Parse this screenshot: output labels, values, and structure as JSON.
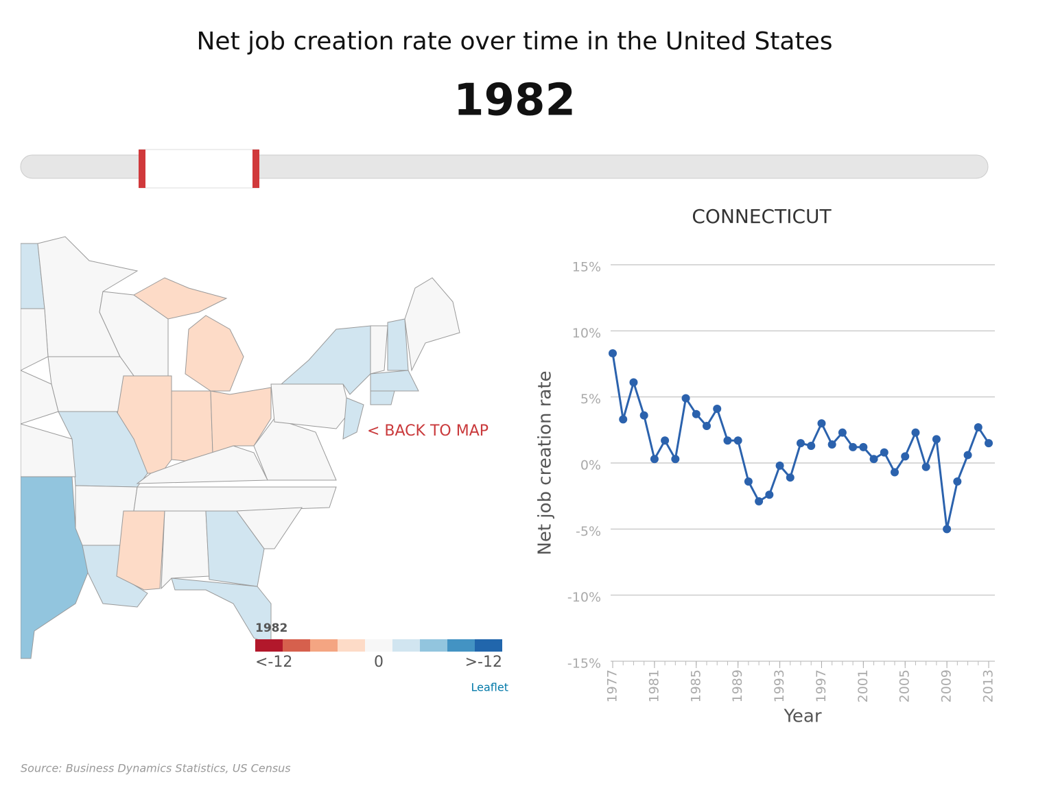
{
  "title": "Net job creation rate over time in the United States",
  "year": "1982",
  "back_link": "< BACK TO MAP",
  "map_legend": {
    "title": "1982",
    "colors": [
      "#b2182b",
      "#d6604d",
      "#f4a582",
      "#fddbc7",
      "#f7f7f7",
      "#d1e5f0",
      "#92c5de",
      "#4393c3",
      "#2166ac"
    ],
    "labels": [
      "<-12",
      "0",
      ">-12"
    ]
  },
  "attribution": "Leaflet",
  "source": "Source: Business Dynamics Statistics, US Census",
  "chart_data": {
    "type": "line",
    "title": "CONNECTICUT",
    "x_label": "Year",
    "y_label": "Net job creation rate",
    "x": [
      1977,
      1978,
      1979,
      1980,
      1981,
      1982,
      1983,
      1984,
      1985,
      1986,
      1987,
      1988,
      1989,
      1990,
      1991,
      1992,
      1993,
      1994,
      1995,
      1996,
      1997,
      1998,
      1999,
      2000,
      2001,
      2002,
      2003,
      2004,
      2005,
      2006,
      2007,
      2008,
      2009,
      2010,
      2011,
      2012,
      2013
    ],
    "series": [
      {
        "name": "Connecticut",
        "color": "#2b62ad",
        "values": [
          8.3,
          3.3,
          6.1,
          3.6,
          0.3,
          1.7,
          0.3,
          4.9,
          3.7,
          2.8,
          4.1,
          1.7,
          1.7,
          -1.4,
          -2.9,
          -2.4,
          -0.2,
          -1.1,
          1.5,
          1.3,
          3.0,
          1.4,
          2.3,
          1.2,
          1.2,
          0.3,
          0.8,
          -0.7,
          0.5,
          2.3,
          -0.3,
          1.8,
          -5.0,
          -1.4,
          0.6,
          2.7,
          1.5
        ]
      }
    ],
    "xlim": [
      1977,
      2013
    ],
    "xticks": [
      1977,
      1981,
      1985,
      1989,
      1993,
      1997,
      2001,
      2005,
      2009,
      2013
    ],
    "ylim": [
      -15,
      15
    ],
    "yticks": [
      {
        "value": -15,
        "label": "-15%"
      },
      {
        "value": -10,
        "label": "-10%"
      },
      {
        "value": -5,
        "label": "-5%"
      },
      {
        "value": 0,
        "label": "0%"
      },
      {
        "value": 5,
        "label": "5%"
      },
      {
        "value": 10,
        "label": "10%"
      },
      {
        "value": 15,
        "label": "15%"
      }
    ],
    "grid": true
  }
}
